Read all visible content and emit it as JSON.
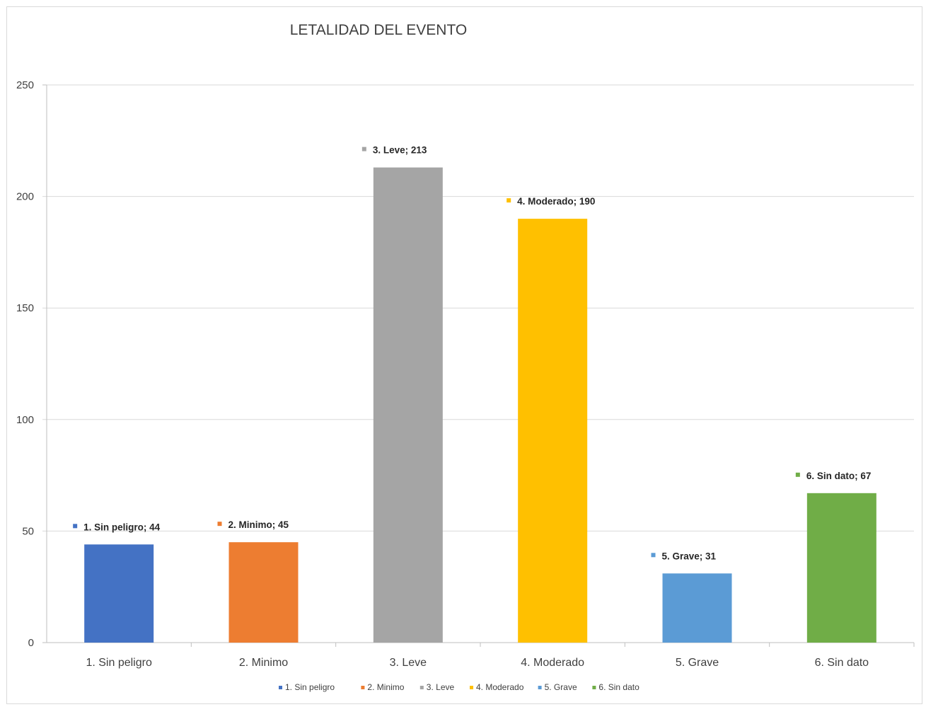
{
  "chart_data": {
    "type": "bar",
    "title": "LETALIDAD DEL EVENTO",
    "xlabel": "",
    "ylabel": "",
    "ylim": [
      0,
      250
    ],
    "yticks": [
      "0",
      "50",
      "100",
      "150",
      "200",
      "250"
    ],
    "grid": true,
    "legend_position": "bottom",
    "categories": [
      "1. Sin peligro",
      "2. Minimo",
      "3. Leve",
      "4. Moderado",
      "5. Grave",
      "6. Sin dato"
    ],
    "values": [
      44,
      45,
      213,
      190,
      31,
      67
    ],
    "data_labels": [
      "1. Sin peligro; 44",
      "2. Minimo; 45",
      "3. Leve; 213",
      "4. Moderado; 190",
      "5. Grave; 31",
      "6. Sin dato; 67"
    ],
    "colors": [
      "#4472C4",
      "#ED7D31",
      "#A5A5A5",
      "#FFC000",
      "#5B9BD5",
      "#70AD47"
    ]
  }
}
